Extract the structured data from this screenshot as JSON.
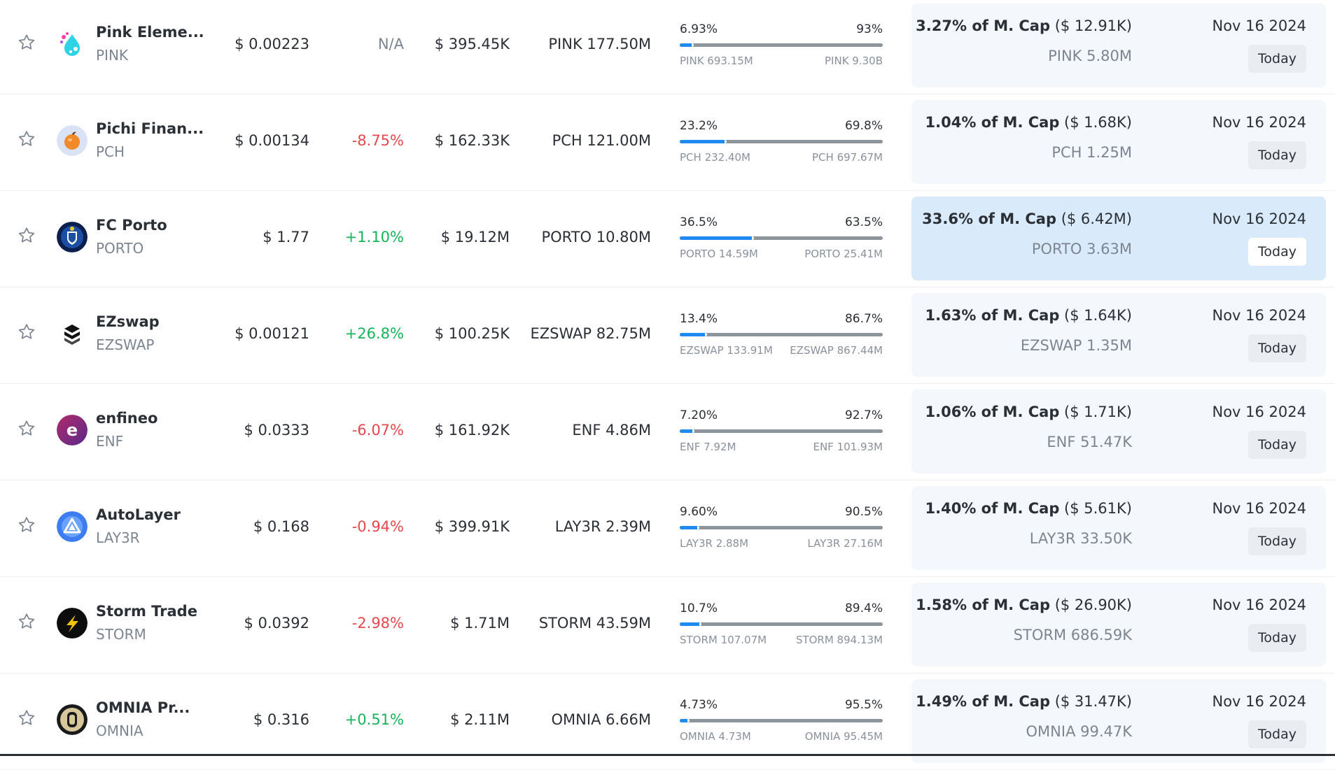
{
  "rows": [
    {
      "name": "Pink Eleme...",
      "ticker": "PINK",
      "price": "$ 0.00223",
      "change": "N/A",
      "change_dir": "na",
      "market_cap": "$ 395.45K",
      "circ_supply": "PINK 177.50M",
      "unlocked_pct": "6.93%",
      "locked_pct": "93%",
      "unlocked_fraction": 0.0693,
      "unlocked_amount": "PINK 693.15M",
      "locked_amount": "PINK 9.30B",
      "next_unlock_pct": "3.27% of M. Cap",
      "next_unlock_value": "($ 12.91K)",
      "next_unlock_amount": "PINK 5.80M",
      "next_unlock_date": "Nov 16 2024",
      "today_label": "Today",
      "highlight": false,
      "logo": "pink-elements-logo-icon"
    },
    {
      "name": "Pichi Finan...",
      "ticker": "PCH",
      "price": "$ 0.00134",
      "change": "-8.75%",
      "change_dir": "neg",
      "market_cap": "$ 162.33K",
      "circ_supply": "PCH 121.00M",
      "unlocked_pct": "23.2%",
      "locked_pct": "69.8%",
      "unlocked_fraction": 0.232,
      "unlocked_amount": "PCH 232.40M",
      "locked_amount": "PCH 697.67M",
      "next_unlock_pct": "1.04% of M. Cap",
      "next_unlock_value": "($ 1.68K)",
      "next_unlock_amount": "PCH 1.25M",
      "next_unlock_date": "Nov 16 2024",
      "today_label": "Today",
      "highlight": false,
      "logo": "pichi-finance-logo-icon"
    },
    {
      "name": "FC Porto",
      "ticker": "PORTO",
      "price": "$ 1.77",
      "change": "+1.10%",
      "change_dir": "pos",
      "market_cap": "$ 19.12M",
      "circ_supply": "PORTO 10.80M",
      "unlocked_pct": "36.5%",
      "locked_pct": "63.5%",
      "unlocked_fraction": 0.365,
      "unlocked_amount": "PORTO 14.59M",
      "locked_amount": "PORTO 25.41M",
      "next_unlock_pct": "33.6% of M. Cap",
      "next_unlock_value": "($ 6.42M)",
      "next_unlock_amount": "PORTO 3.63M",
      "next_unlock_date": "Nov 16 2024",
      "today_label": "Today",
      "highlight": true,
      "logo": "fc-porto-logo-icon"
    },
    {
      "name": "EZswap",
      "ticker": "EZSWAP",
      "price": "$ 0.00121",
      "change": "+26.8%",
      "change_dir": "pos",
      "market_cap": "$ 100.25K",
      "circ_supply": "EZSWAP 82.75M",
      "unlocked_pct": "13.4%",
      "locked_pct": "86.7%",
      "unlocked_fraction": 0.134,
      "unlocked_amount": "EZSWAP 133.91M",
      "locked_amount": "EZSWAP 867.44M",
      "next_unlock_pct": "1.63% of M. Cap",
      "next_unlock_value": "($ 1.64K)",
      "next_unlock_amount": "EZSWAP 1.35M",
      "next_unlock_date": "Nov 16 2024",
      "today_label": "Today",
      "highlight": false,
      "logo": "ezswap-logo-icon"
    },
    {
      "name": "enfineo",
      "ticker": "ENF",
      "price": "$ 0.0333",
      "change": "-6.07%",
      "change_dir": "neg",
      "market_cap": "$ 161.92K",
      "circ_supply": "ENF 4.86M",
      "unlocked_pct": "7.20%",
      "locked_pct": "92.7%",
      "unlocked_fraction": 0.072,
      "unlocked_amount": "ENF 7.92M",
      "locked_amount": "ENF 101.93M",
      "next_unlock_pct": "1.06% of M. Cap",
      "next_unlock_value": "($ 1.71K)",
      "next_unlock_amount": "ENF 51.47K",
      "next_unlock_date": "Nov 16 2024",
      "today_label": "Today",
      "highlight": false,
      "logo": "enfineo-logo-icon"
    },
    {
      "name": "AutoLayer",
      "ticker": "LAY3R",
      "price": "$ 0.168",
      "change": "-0.94%",
      "change_dir": "neg",
      "market_cap": "$ 399.91K",
      "circ_supply": "LAY3R 2.39M",
      "unlocked_pct": "9.60%",
      "locked_pct": "90.5%",
      "unlocked_fraction": 0.096,
      "unlocked_amount": "LAY3R 2.88M",
      "locked_amount": "LAY3R 27.16M",
      "next_unlock_pct": "1.40% of M. Cap",
      "next_unlock_value": "($ 5.61K)",
      "next_unlock_amount": "LAY3R 33.50K",
      "next_unlock_date": "Nov 16 2024",
      "today_label": "Today",
      "highlight": false,
      "logo": "autolayer-logo-icon"
    },
    {
      "name": "Storm Trade",
      "ticker": "STORM",
      "price": "$ 0.0392",
      "change": "-2.98%",
      "change_dir": "neg",
      "market_cap": "$ 1.71M",
      "circ_supply": "STORM 43.59M",
      "unlocked_pct": "10.7%",
      "locked_pct": "89.4%",
      "unlocked_fraction": 0.107,
      "unlocked_amount": "STORM 107.07M",
      "locked_amount": "STORM 894.13M",
      "next_unlock_pct": "1.58% of M. Cap",
      "next_unlock_value": "($ 26.90K)",
      "next_unlock_amount": "STORM 686.59K",
      "next_unlock_date": "Nov 16 2024",
      "today_label": "Today",
      "highlight": false,
      "logo": "storm-trade-logo-icon"
    },
    {
      "name": "OMNIA Pr...",
      "ticker": "OMNIA",
      "price": "$ 0.316",
      "change": "+0.51%",
      "change_dir": "pos",
      "market_cap": "$ 2.11M",
      "circ_supply": "OMNIA 6.66M",
      "unlocked_pct": "4.73%",
      "locked_pct": "95.5%",
      "unlocked_fraction": 0.0473,
      "unlocked_amount": "OMNIA 4.73M",
      "locked_amount": "OMNIA 95.45M",
      "next_unlock_pct": "1.49% of M. Cap",
      "next_unlock_value": "($ 31.47K)",
      "next_unlock_amount": "OMNIA 99.47K",
      "next_unlock_date": "Nov 16 2024",
      "today_label": "Today",
      "highlight": false,
      "logo": "omnia-logo-icon"
    }
  ],
  "colors": {
    "positive": "#16b45a",
    "negative": "#e5484d",
    "bar_fill": "#1e8bf0",
    "bar_track": "#8e949c",
    "unlock_panel": "#f4f8fd",
    "unlock_panel_highlight": "#d9eafb"
  }
}
